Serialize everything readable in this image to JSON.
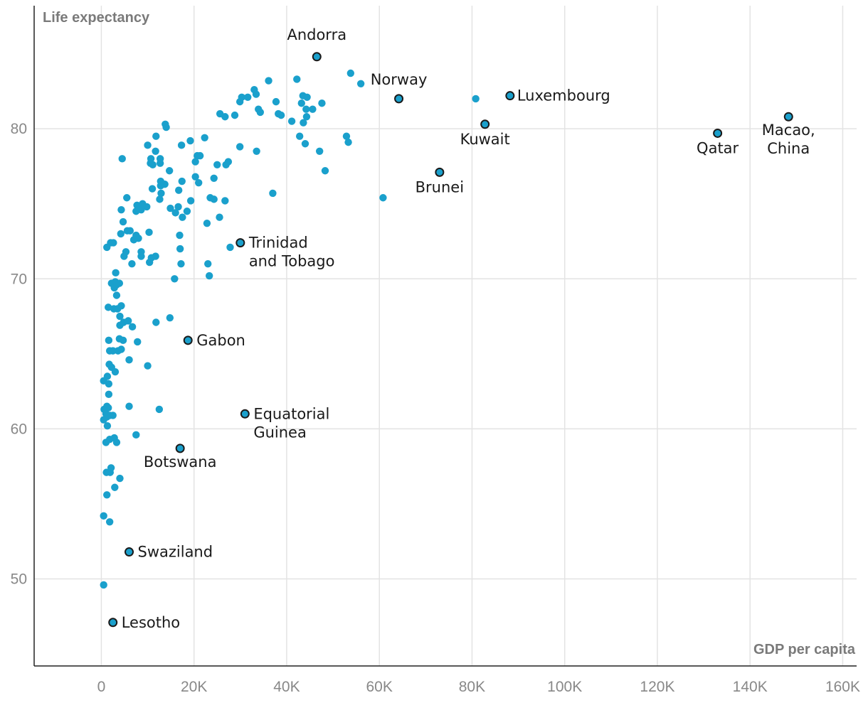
{
  "chart_data": {
    "type": "scatter",
    "xlabel": "GDP per capita",
    "ylabel": "Life expectancy",
    "xlim": [
      -14500,
      163000
    ],
    "ylim": [
      44.2,
      88.2
    ],
    "x_ticks": [
      0,
      20000,
      40000,
      60000,
      80000,
      100000,
      120000,
      140000,
      160000
    ],
    "x_tick_labels": [
      "0",
      "20K",
      "40K",
      "60K",
      "80K",
      "100K",
      "120K",
      "140K",
      "160K"
    ],
    "y_ticks": [
      50,
      60,
      70,
      80
    ],
    "y_tick_labels": [
      "50",
      "60",
      "70",
      "80"
    ],
    "grid": true,
    "series_color": "#1aa0cc",
    "highlighted": [
      {
        "name": "Andorra",
        "x": 46500,
        "y": 84.8,
        "label_lines": [
          "Andorra"
        ],
        "anchor": "middle",
        "dx": 0,
        "dy": -24
      },
      {
        "name": "Norway",
        "x": 64200,
        "y": 82.0,
        "label_lines": [
          "Norway"
        ],
        "anchor": "middle",
        "dx": 0,
        "dy": -20
      },
      {
        "name": "Luxembourg",
        "x": 88200,
        "y": 82.2,
        "label_lines": [
          "Luxembourg"
        ],
        "anchor": "start",
        "dx": 10,
        "dy": 0
      },
      {
        "name": "Kuwait",
        "x": 82800,
        "y": 80.3,
        "label_lines": [
          "Kuwait"
        ],
        "anchor": "middle",
        "dx": 0,
        "dy": 28
      },
      {
        "name": "Qatar",
        "x": 133000,
        "y": 79.7,
        "label_lines": [
          "Qatar"
        ],
        "anchor": "middle",
        "dx": 0,
        "dy": 28
      },
      {
        "name": "Macao, China",
        "x": 148300,
        "y": 80.8,
        "label_lines": [
          "Macao,",
          "China"
        ],
        "anchor": "middle",
        "dx": 0,
        "dy": 26
      },
      {
        "name": "Brunei",
        "x": 73000,
        "y": 77.1,
        "label_lines": [
          "Brunei"
        ],
        "anchor": "middle",
        "dx": 0,
        "dy": 28
      },
      {
        "name": "Trinidad and Tobago",
        "x": 30000,
        "y": 72.4,
        "label_lines": [
          "Trinidad",
          "and Tobago"
        ],
        "anchor": "start",
        "dx": 12,
        "dy": 0
      },
      {
        "name": "Gabon",
        "x": 18700,
        "y": 65.9,
        "label_lines": [
          "Gabon"
        ],
        "anchor": "start",
        "dx": 12,
        "dy": 0
      },
      {
        "name": "Equatorial Guinea",
        "x": 31000,
        "y": 61.0,
        "label_lines": [
          "Equatorial",
          "Guinea"
        ],
        "anchor": "start",
        "dx": 12,
        "dy": 0
      },
      {
        "name": "Botswana",
        "x": 17000,
        "y": 58.7,
        "label_lines": [
          "Botswana"
        ],
        "anchor": "middle",
        "dx": 0,
        "dy": 26
      },
      {
        "name": "Swaziland",
        "x": 6000,
        "y": 51.8,
        "label_lines": [
          "Swaziland"
        ],
        "anchor": "start",
        "dx": 12,
        "dy": 0
      },
      {
        "name": "Lesotho",
        "x": 2500,
        "y": 47.1,
        "label_lines": [
          "Lesotho"
        ],
        "anchor": "start",
        "dx": 12,
        "dy": 0
      }
    ],
    "points": [
      [
        500,
        49.6
      ],
      [
        1800,
        53.8
      ],
      [
        500,
        54.2
      ],
      [
        1200,
        55.6
      ],
      [
        4000,
        56.7
      ],
      [
        2900,
        56.1
      ],
      [
        1100,
        57.1
      ],
      [
        1900,
        57.1
      ],
      [
        2100,
        57.4
      ],
      [
        1000,
        59.1
      ],
      [
        1800,
        59.3
      ],
      [
        2800,
        59.4
      ],
      [
        3300,
        59.1
      ],
      [
        7500,
        59.6
      ],
      [
        1300,
        60.2
      ],
      [
        500,
        60.6
      ],
      [
        1200,
        60.8
      ],
      [
        2500,
        60.9
      ],
      [
        1800,
        60.9
      ],
      [
        1000,
        61.0
      ],
      [
        600,
        61.3
      ],
      [
        1500,
        61.4
      ],
      [
        1200,
        61.5
      ],
      [
        6000,
        61.5
      ],
      [
        12500,
        61.3
      ],
      [
        1600,
        62.3
      ],
      [
        1600,
        63.0
      ],
      [
        500,
        63.2
      ],
      [
        1300,
        63.5
      ],
      [
        3000,
        63.8
      ],
      [
        2200,
        64.1
      ],
      [
        10000,
        64.2
      ],
      [
        1700,
        64.3
      ],
      [
        6000,
        64.6
      ],
      [
        2500,
        65.2
      ],
      [
        1800,
        65.2
      ],
      [
        3600,
        65.2
      ],
      [
        4300,
        65.3
      ],
      [
        1600,
        65.9
      ],
      [
        4700,
        65.9
      ],
      [
        3900,
        66.0
      ],
      [
        7800,
        65.8
      ],
      [
        4000,
        66.9
      ],
      [
        6700,
        66.8
      ],
      [
        4800,
        67.1
      ],
      [
        11800,
        67.1
      ],
      [
        5800,
        67.2
      ],
      [
        14800,
        67.4
      ],
      [
        4000,
        67.5
      ],
      [
        1500,
        68.1
      ],
      [
        2700,
        68.0
      ],
      [
        4300,
        68.2
      ],
      [
        3500,
        68.0
      ],
      [
        3300,
        68.9
      ],
      [
        2800,
        69.4
      ],
      [
        2200,
        69.7
      ],
      [
        3000,
        69.8
      ],
      [
        3900,
        69.7
      ],
      [
        3300,
        69.6
      ],
      [
        15800,
        70.0
      ],
      [
        3100,
        70.4
      ],
      [
        23300,
        70.2
      ],
      [
        6600,
        71.0
      ],
      [
        10400,
        71.1
      ],
      [
        17200,
        71.0
      ],
      [
        23000,
        71.0
      ],
      [
        4900,
        71.5
      ],
      [
        8600,
        71.5
      ],
      [
        10800,
        71.4
      ],
      [
        11700,
        71.5
      ],
      [
        5300,
        71.8
      ],
      [
        8600,
        71.8
      ],
      [
        17000,
        72.0
      ],
      [
        27800,
        72.1
      ],
      [
        1200,
        72.1
      ],
      [
        2000,
        72.4
      ],
      [
        2600,
        72.4
      ],
      [
        7000,
        72.6
      ],
      [
        7500,
        72.9
      ],
      [
        8000,
        72.7
      ],
      [
        4200,
        73.0
      ],
      [
        5600,
        73.2
      ],
      [
        6200,
        73.2
      ],
      [
        10300,
        73.1
      ],
      [
        16900,
        72.9
      ],
      [
        4700,
        73.8
      ],
      [
        22800,
        73.7
      ],
      [
        7500,
        74.5
      ],
      [
        8600,
        74.6
      ],
      [
        4300,
        74.6
      ],
      [
        9800,
        74.8
      ],
      [
        14900,
        74.7
      ],
      [
        16000,
        74.4
      ],
      [
        16600,
        74.8
      ],
      [
        17500,
        74.1
      ],
      [
        18500,
        74.5
      ],
      [
        25500,
        74.1
      ],
      [
        7700,
        74.9
      ],
      [
        8900,
        75.0
      ],
      [
        12600,
        75.3
      ],
      [
        5500,
        75.4
      ],
      [
        12900,
        75.7
      ],
      [
        16700,
        75.9
      ],
      [
        19300,
        75.2
      ],
      [
        23500,
        75.4
      ],
      [
        24300,
        75.3
      ],
      [
        26700,
        75.2
      ],
      [
        37000,
        75.7
      ],
      [
        11000,
        76.0
      ],
      [
        12800,
        76.2
      ],
      [
        13700,
        76.3
      ],
      [
        12800,
        76.5
      ],
      [
        17400,
        76.5
      ],
      [
        21000,
        76.4
      ],
      [
        20300,
        76.8
      ],
      [
        24300,
        76.7
      ],
      [
        14700,
        77.2
      ],
      [
        10600,
        77.7
      ],
      [
        11100,
        77.6
      ],
      [
        12700,
        77.7
      ],
      [
        20300,
        77.8
      ],
      [
        25000,
        77.6
      ],
      [
        26900,
        77.6
      ],
      [
        27400,
        77.8
      ],
      [
        48300,
        77.2
      ],
      [
        4500,
        78.0
      ],
      [
        10700,
        78.0
      ],
      [
        11700,
        78.5
      ],
      [
        12700,
        78.0
      ],
      [
        17300,
        78.9
      ],
      [
        20700,
        78.2
      ],
      [
        21300,
        78.2
      ],
      [
        29900,
        78.8
      ],
      [
        33500,
        78.5
      ],
      [
        47100,
        78.5
      ],
      [
        52900,
        79.5
      ],
      [
        53300,
        79.1
      ],
      [
        10000,
        78.9
      ],
      [
        11800,
        79.5
      ],
      [
        19200,
        79.2
      ],
      [
        22300,
        79.4
      ],
      [
        42800,
        79.5
      ],
      [
        44000,
        79.0
      ],
      [
        14000,
        80.1
      ],
      [
        13800,
        80.3
      ],
      [
        41100,
        80.5
      ],
      [
        43600,
        80.4
      ],
      [
        44300,
        80.8
      ],
      [
        25600,
        81.0
      ],
      [
        26700,
        80.8
      ],
      [
        28800,
        80.9
      ],
      [
        38200,
        81.0
      ],
      [
        38800,
        80.9
      ],
      [
        44200,
        81.3
      ],
      [
        45600,
        81.3
      ],
      [
        29900,
        81.8
      ],
      [
        33900,
        81.3
      ],
      [
        37700,
        81.8
      ],
      [
        47600,
        81.7
      ],
      [
        34300,
        81.1
      ],
      [
        30300,
        82.1
      ],
      [
        31600,
        82.1
      ],
      [
        33400,
        82.3
      ],
      [
        43500,
        82.2
      ],
      [
        44400,
        82.1
      ],
      [
        43200,
        81.7
      ],
      [
        33000,
        82.6
      ],
      [
        36100,
        83.2
      ],
      [
        42200,
        83.3
      ],
      [
        53800,
        83.7
      ],
      [
        56000,
        83.0
      ],
      [
        80800,
        82.0
      ],
      [
        60800,
        75.4
      ]
    ]
  }
}
